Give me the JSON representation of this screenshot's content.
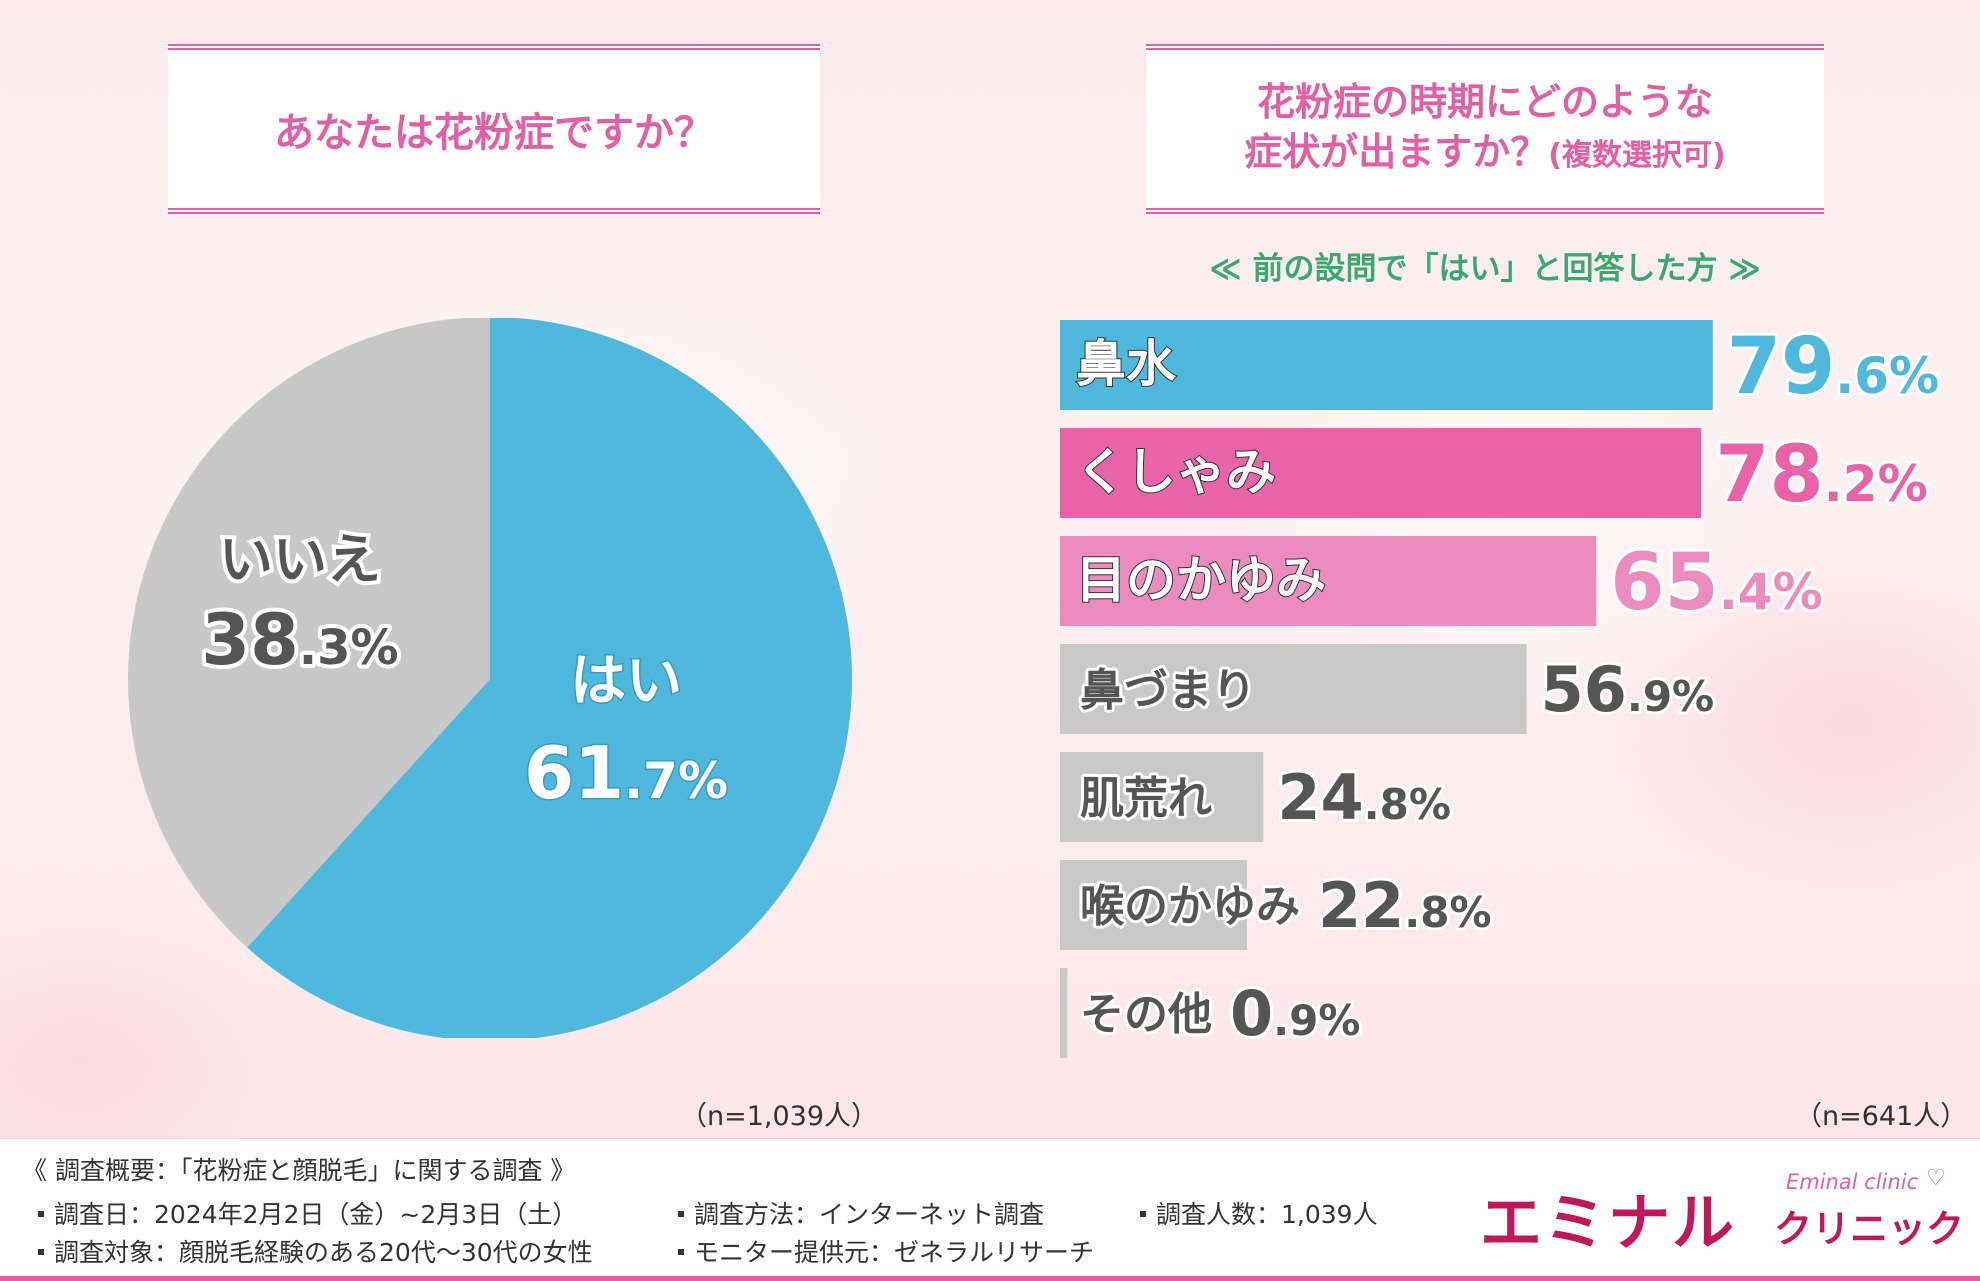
{
  "left_title": "あなたは花粉症ですか？",
  "right_title_line1": "花粉症の時期にどのような",
  "right_title_line2": "症状が出ますか？",
  "right_title_sub": "(複数選択可)",
  "subtitle": "≪ 前の設問で「はい」と回答した方 ≫",
  "left_n": "（n=1,039人）",
  "right_n": "（n=641人）",
  "chart_data": [
    {
      "type": "pie",
      "title": "あなたは花粉症ですか？",
      "slices": [
        {
          "label": "はい",
          "value": 61.7,
          "color": "#4fb8dd",
          "int": "61",
          "dec": ".7%"
        },
        {
          "label": "いいえ",
          "value": 38.3,
          "color": "#c8c8c8",
          "int": "38",
          "dec": ".3%"
        }
      ]
    },
    {
      "type": "bar",
      "orientation": "horizontal",
      "title": "花粉症の時期にどのような症状が出ますか？(複数選択可)",
      "xlim": [
        0,
        100
      ],
      "categories": [
        "鼻水",
        "くしゃみ",
        "目のかゆみ",
        "鼻づまり",
        "肌荒れ",
        "喉のかゆみ",
        "その他"
      ],
      "values": [
        79.6,
        78.2,
        65.4,
        56.9,
        24.8,
        22.8,
        0.9
      ],
      "ints": [
        "79",
        "78",
        "65",
        "56",
        "24",
        "22",
        "0"
      ],
      "decs": [
        ".6%",
        ".2%",
        ".4%",
        ".9%",
        ".8%",
        ".8%",
        ".9%"
      ],
      "colors": [
        "#4fb8dd",
        "#e863a8",
        "#ec8bbd",
        "#c9c9c9",
        "#c9c9c9",
        "#c9c9c9",
        "#c9c9c9"
      ],
      "label_colors": [
        "#ffffff",
        "#ffffff",
        "#ffffff",
        "#555555",
        "#555555",
        "#555555",
        "#555555"
      ],
      "value_colors": [
        "#4fb8dd",
        "#e863a8",
        "#ec8bbd",
        "#555555",
        "#555555",
        "#555555",
        "#555555"
      ]
    }
  ],
  "footer": {
    "heading": "《 調査概要：「花粉症と顔脱毛」に関する調査 》",
    "date": "調査日：2024年2月2日（金）~2月3日（土）",
    "target": "調査対象：顔脱毛経験のある20代～30代の女性",
    "method": "調査方法：インターネット調査",
    "monitor": "モニター提供元：ゼネラルリサーチ",
    "count": "調査人数：1,039人"
  },
  "logo": {
    "main": "エミナル",
    "sub": "クリニック",
    "en": "Eminal clinic",
    "heart": "♡"
  }
}
